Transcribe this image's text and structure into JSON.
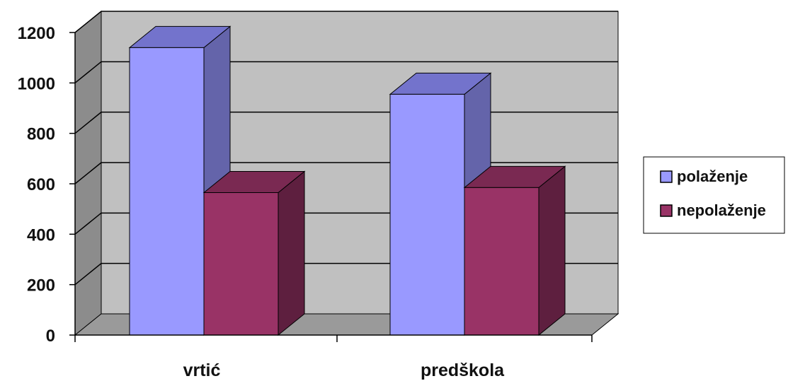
{
  "chart_data": {
    "type": "bar",
    "categories": [
      "vrtić",
      "predškola"
    ],
    "series": [
      {
        "name": "polaženje",
        "values": [
          1140,
          955
        ]
      },
      {
        "name": "nepolaženje",
        "values": [
          565,
          585
        ]
      }
    ],
    "yticks": [
      "0",
      "200",
      "400",
      "600",
      "800",
      "1000",
      "1200"
    ],
    "ylim": [
      0,
      1200
    ],
    "grid": true,
    "legend_position": "right",
    "colors": {
      "polaženje": {
        "front": "#9999ff",
        "side": "#6464aa",
        "top": "#7373cc"
      },
      "nepolaženje": {
        "front": "#993366",
        "side": "#5e1f3f",
        "top": "#7a2952"
      },
      "wall": "#c0c0c0",
      "wall_side": "#8c8c8c",
      "floor": "#9a9a9a",
      "grid": "#000000"
    }
  }
}
